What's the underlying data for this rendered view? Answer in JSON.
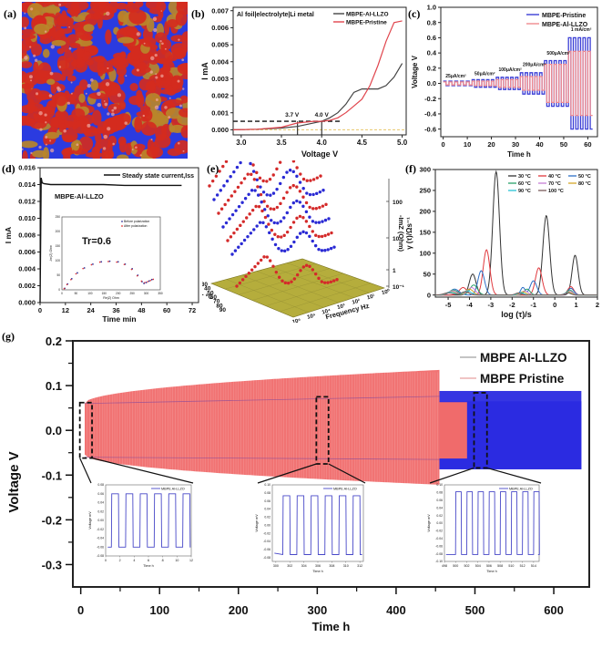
{
  "figure": {
    "panel_labels": [
      "(a)",
      "(b)",
      "(c)",
      "(d)",
      "(e)",
      "(f)",
      "(g)"
    ]
  },
  "chart_data": [
    {
      "id": "a",
      "type": "other",
      "description": "3D rendered morphology of red and blue domains (composite electrolyte structure)",
      "colors": {
        "phase1": "#d42b1e",
        "phase2": "#2b3be0",
        "highlight": "#b8862a"
      }
    },
    {
      "id": "b",
      "type": "line",
      "title": "Al foil|electrolyte|Li metal",
      "xlabel": "Voltage V",
      "ylabel": "I mA",
      "xlim": [
        2.9,
        5.05
      ],
      "ylim": [
        -0.0003,
        0.0072
      ],
      "xticks": [
        "3.0",
        "3.5",
        "4.0",
        "4.5",
        "5.0"
      ],
      "yticks": [
        "0.000",
        "0.001",
        "0.002",
        "0.003",
        "0.004",
        "0.005",
        "0.006",
        "0.007"
      ],
      "legend_position": "top-right",
      "annotations": [
        "3.7 V",
        "4.0 V"
      ],
      "threshold_current": 0.0005,
      "series": [
        {
          "name": "MBPE-Al-LLZO",
          "color": "#444444",
          "x": [
            2.9,
            3.2,
            3.5,
            3.7,
            3.9,
            4.0,
            4.1,
            4.2,
            4.3,
            4.4,
            4.5,
            4.6,
            4.7,
            4.8,
            4.9,
            5.0
          ],
          "y": [
            0.0,
            3e-05,
            0.0001,
            0.0002,
            0.0004,
            0.0005,
            0.0007,
            0.001,
            0.0015,
            0.0022,
            0.0024,
            0.0024,
            0.0024,
            0.0026,
            0.0031,
            0.0039
          ]
        },
        {
          "name": "MBPE-Pristine",
          "color": "#e0454d",
          "x": [
            2.9,
            3.2,
            3.5,
            3.7,
            3.9,
            4.0,
            4.1,
            4.2,
            4.3,
            4.4,
            4.5,
            4.6,
            4.7,
            4.8,
            4.9,
            5.0
          ],
          "y": [
            0.0,
            3e-05,
            0.00015,
            0.0004,
            0.0005,
            0.0005,
            0.00055,
            0.0007,
            0.001,
            0.0014,
            0.0018,
            0.0026,
            0.0038,
            0.0052,
            0.0063,
            0.0064
          ]
        }
      ]
    },
    {
      "id": "c",
      "type": "line",
      "xlabel": "Time h",
      "ylabel": "Voltage V",
      "xlim": [
        -1,
        64
      ],
      "ylim": [
        -0.7,
        1.0
      ],
      "xticks": [
        "0",
        "10",
        "20",
        "30",
        "40",
        "50",
        "60"
      ],
      "yticks": [
        "-0.6",
        "-0.4",
        "-0.2",
        "0.0",
        "0.2",
        "0.4",
        "0.6",
        "0.8",
        "1.0"
      ],
      "legend_position": "top-right",
      "annotations": [
        "25μA/cm²",
        "50μA/cm²",
        "100μA/cm²",
        "200μA/cm²",
        "500μA/cm²",
        "1 mA/cm²"
      ],
      "steps": [
        {
          "label": "25μA/cm²",
          "t_start": 0,
          "t_end": 12,
          "pristine_amp": 0.03,
          "llzo_amp": 0.02
        },
        {
          "label": "50μA/cm²",
          "t_start": 12,
          "t_end": 22,
          "pristine_amp": 0.05,
          "llzo_amp": 0.03
        },
        {
          "label": "100μA/cm²",
          "t_start": 22,
          "t_end": 32,
          "pristine_amp": 0.08,
          "llzo_amp": 0.05
        },
        {
          "label": "200μA/cm²",
          "t_start": 32,
          "t_end": 42,
          "pristine_amp": 0.14,
          "llzo_amp": 0.09
        },
        {
          "label": "500μA/cm²",
          "t_start": 42,
          "t_end": 52,
          "pristine_amp": 0.3,
          "llzo_amp": 0.25
        },
        {
          "label": "1 mA/cm²",
          "t_start": 52,
          "t_end": 62,
          "pristine_amp": 0.6,
          "llzo_amp": 0.42
        }
      ],
      "series": [
        {
          "name": "MBPE-Pristine",
          "color": "#3b3fd6"
        },
        {
          "name": "MBPE-Al-LLZO",
          "color": "#f08a8f"
        }
      ]
    },
    {
      "id": "d",
      "type": "line",
      "xlabel": "Time min",
      "ylabel": "I mA",
      "xlim": [
        0,
        75
      ],
      "ylim": [
        0,
        0.016
      ],
      "xticks": [
        "0",
        "12",
        "24",
        "36",
        "48",
        "60",
        "72"
      ],
      "yticks": [
        "0.000",
        "0.002",
        "0.004",
        "0.006",
        "0.008",
        "0.010",
        "0.012",
        "0.014",
        "0.016"
      ],
      "legend_position": "top-right",
      "annotation": "MBPE-Al-LLZO",
      "series": [
        {
          "name": "Steady state current,Iss",
          "color": "#111111",
          "x": [
            0,
            0.5,
            1,
            2,
            5,
            10,
            20,
            30,
            40,
            50,
            60,
            67
          ],
          "y": [
            0.0,
            0.0148,
            0.0142,
            0.0141,
            0.014,
            0.014,
            0.014,
            0.014,
            0.0139,
            0.0139,
            0.0139,
            0.0139
          ]
        }
      ],
      "inset": {
        "type": "scatter",
        "xlabel": "Re(Z) Ohm",
        "ylabel": "-Im(Z) Ohm",
        "xlim": [
          0,
          350
        ],
        "ylim": [
          0,
          250
        ],
        "xticks": [
          "0",
          "50",
          "100",
          "150",
          "200",
          "250",
          "300",
          "350"
        ],
        "yticks": [
          "0",
          "50",
          "100",
          "150",
          "200",
          "250"
        ],
        "annotation": "Tr=0.6",
        "series": [
          {
            "name": "Before polarization",
            "color": "#333399",
            "x": [
              10,
              20,
              35,
              55,
              80,
              110,
              140,
              170,
              200,
              225,
              250,
              270,
              285,
              292,
              300,
              310,
              320
            ],
            "y": [
              5,
              20,
              38,
              58,
              75,
              88,
              96,
              98,
              96,
              88,
              72,
              50,
              28,
              22,
              25,
              30,
              35
            ]
          },
          {
            "name": "After polarization",
            "color": "#e03030",
            "x": [
              8,
              18,
              32,
              50,
              75,
              105,
              135,
              165,
              195,
              222,
              248,
              268,
              283,
              295,
              305,
              315,
              325
            ],
            "y": [
              4,
              18,
              35,
              55,
              73,
              86,
              95,
              97,
              95,
              87,
              70,
              48,
              30,
              25,
              28,
              32,
              36
            ]
          }
        ]
      }
    },
    {
      "id": "e",
      "type": "scatter3d",
      "xlabel": "Frequency Hz",
      "ylabel": "T °C",
      "zlabel": "-ImZ (Ohm)",
      "xticks": [
        "10⁶",
        "10⁵",
        "10⁴",
        "10³",
        "10²",
        "10¹",
        "10⁰"
      ],
      "yticks": [
        "30",
        "40",
        "50",
        "60",
        "70",
        "80",
        "90"
      ],
      "zticks": [
        "10⁻¹",
        "1",
        "10",
        "100"
      ],
      "series_colors": [
        "#d42a2a",
        "#2a2ad4"
      ],
      "series": [
        {
          "name": "30 °C",
          "color": "#d42a2a"
        },
        {
          "name": "40 °C",
          "color": "#2a2ad4"
        },
        {
          "name": "50 °C",
          "color": "#d42a2a"
        },
        {
          "name": "60 °C",
          "color": "#2a2ad4"
        },
        {
          "name": "70 °C",
          "color": "#d42a2a"
        },
        {
          "name": "80 °C",
          "color": "#2a2ad4"
        },
        {
          "name": "90 °C",
          "color": "#d42a2a"
        }
      ]
    },
    {
      "id": "f",
      "type": "line",
      "xlabel": "log (τ)/s",
      "ylabel": "γ (τ)/Ωs⁻¹",
      "xlim": [
        -5.6,
        2
      ],
      "ylim": [
        -5,
        300
      ],
      "xticks": [
        "-5",
        "-4",
        "-3",
        "-2",
        "-1",
        "0",
        "1",
        "2"
      ],
      "yticks": [
        "0",
        "50",
        "100",
        "150",
        "200",
        "250",
        "300"
      ],
      "legend_position": "top-right",
      "series": [
        {
          "name": "30 °C",
          "color": "#333333",
          "peaks": [
            [
              -3.85,
              50,
              0.22
            ],
            [
              -2.75,
              295,
              0.22
            ],
            [
              -0.4,
              190,
              0.22
            ],
            [
              0.95,
              95,
              0.2
            ]
          ]
        },
        {
          "name": "40 °C",
          "color": "#e0383d",
          "peaks": [
            [
              -4.3,
              18,
              0.25
            ],
            [
              -3.2,
              108,
              0.22
            ],
            [
              -0.75,
              65,
              0.22
            ],
            [
              0.75,
              20,
              0.2
            ]
          ]
        },
        {
          "name": "50 °C",
          "color": "#2e6fc7",
          "peaks": [
            [
              -4.7,
              14,
              0.3
            ],
            [
              -3.45,
              58,
              0.22
            ],
            [
              -1.5,
              18,
              0.15
            ],
            [
              -1.0,
              34,
              0.22
            ],
            [
              0.75,
              16,
              0.2
            ]
          ]
        },
        {
          "name": "60 °C",
          "color": "#2aa06a",
          "peaks": [
            [
              -4.75,
              12,
              0.3
            ],
            [
              -3.8,
              24,
              0.25
            ],
            [
              -1.3,
              14,
              0.2
            ],
            [
              0.7,
              12,
              0.2
            ]
          ]
        },
        {
          "name": "70 °C",
          "color": "#c77fd6",
          "peaks": [
            [
              -4.8,
              10,
              0.3
            ],
            [
              -3.9,
              18,
              0.25
            ],
            [
              -1.4,
              10,
              0.2
            ],
            [
              0.7,
              9,
              0.2
            ]
          ]
        },
        {
          "name": "80 °C",
          "color": "#d6a72a",
          "peaks": [
            [
              -4.85,
              8,
              0.3
            ],
            [
              -4.0,
              14,
              0.25
            ],
            [
              -1.5,
              8,
              0.2
            ],
            [
              0.65,
              7,
              0.2
            ]
          ]
        },
        {
          "name": "90 °C",
          "color": "#2ac4d6",
          "peaks": [
            [
              -4.9,
              7,
              0.3
            ],
            [
              -4.1,
              10,
              0.25
            ],
            [
              -1.6,
              6,
              0.2
            ],
            [
              0.6,
              6,
              0.2
            ]
          ]
        },
        {
          "name": "100 °C",
          "color": "#7a5a5a",
          "peaks": [
            [
              -5.0,
              5,
              0.3
            ],
            [
              -4.2,
              8,
              0.25
            ],
            [
              -1.7,
              5,
              0.2
            ],
            [
              0.6,
              5,
              0.2
            ]
          ]
        }
      ]
    },
    {
      "id": "g",
      "type": "line",
      "xlabel": "Time h",
      "ylabel": "Voltage V",
      "xlim": [
        -10,
        645
      ],
      "ylim": [
        -0.35,
        0.2
      ],
      "xticks": [
        "0",
        "100",
        "200",
        "300",
        "400",
        "500",
        "600"
      ],
      "yticks": [
        "-0.3",
        "-0.2",
        "-0.1",
        "0.0",
        "0.1",
        "0.2"
      ],
      "legend_position": "top-right",
      "series": [
        {
          "name": "MBPE Al-LLZO",
          "color": "#2b2be0",
          "t_end": 635,
          "amp_start": 0.06,
          "amp_end": 0.09
        },
        {
          "name": "MBPE Pristine",
          "color": "#f06b6b",
          "t_end": 455,
          "amp_start": 0.06,
          "amp_end": 0.135
        }
      ],
      "zoom_regions": [
        {
          "t_start": 0,
          "t_end": 12
        },
        {
          "t_start": 300,
          "t_end": 312
        },
        {
          "t_start": 500,
          "t_end": 513
        }
      ],
      "insets": [
        {
          "legend": "MBPE Al-LLZO",
          "xlabel": "Time h",
          "ylabel": "Voltage mV",
          "xlim": [
            0,
            12
          ],
          "ylim": [
            -0.08,
            0.08
          ],
          "xticks": [
            "0",
            "2",
            "4",
            "6",
            "8",
            "10",
            "12"
          ],
          "yticks": [
            "-0.08",
            "-0.06",
            "-0.04",
            "-0.02",
            "0.00",
            "0.02",
            "0.04",
            "0.06",
            "0.08"
          ],
          "amplitude": 0.06,
          "period": 2,
          "t0": 0.8
        },
        {
          "legend": "MBPE Al-LLZO",
          "xlabel": "Time h",
          "ylabel": "Voltage mV",
          "xlim": [
            299.5,
            312.5
          ],
          "ylim": [
            -0.09,
            0.1
          ],
          "xticks": [
            "300",
            "302",
            "304",
            "306",
            "308",
            "310",
            "312"
          ],
          "yticks": [
            "-0.08",
            "-0.06",
            "-0.04",
            "-0.02",
            "0.00",
            "0.02",
            "0.04",
            "0.06",
            "0.08",
            "0.10"
          ],
          "amplitude": 0.073,
          "period": 2,
          "t0": 301
        },
        {
          "legend": "MBPE Al-LLZO",
          "xlabel": "Time h",
          "ylabel": "Voltage mV",
          "xlim": [
            498,
            515
          ],
          "ylim": [
            -0.1,
            0.1
          ],
          "xticks": [
            "498",
            "500",
            "502",
            "504",
            "506",
            "508",
            "510",
            "512",
            "514"
          ],
          "yticks": [
            "-0.10",
            "-0.08",
            "-0.06",
            "-0.04",
            "-0.02",
            "0.00",
            "0.02",
            "0.04",
            "0.06",
            "0.08",
            "0.10"
          ],
          "amplitude": 0.082,
          "period": 2,
          "t0": 500
        }
      ]
    }
  ]
}
